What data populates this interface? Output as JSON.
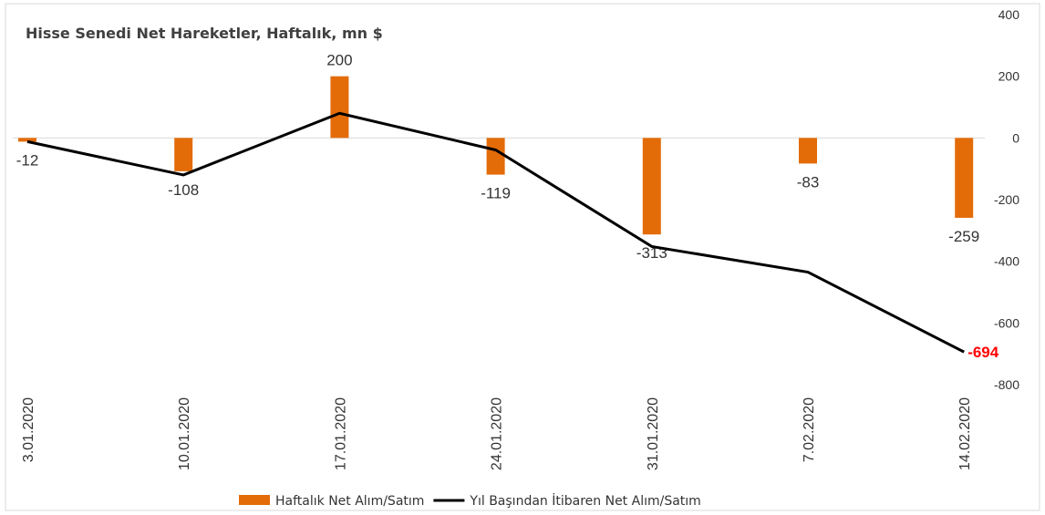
{
  "chart_data": {
    "type": "bar_line",
    "title": "Hisse Senedi Net Hareketler, Haftalık, mn $",
    "categories": [
      "3.01.2020",
      "10.01.2020",
      "17.01.2020",
      "24.01.2020",
      "31.01.2020",
      "7.02.2020",
      "14.02.2020"
    ],
    "series": [
      {
        "name": "Haftalık Net Alım/Satım",
        "type": "bar",
        "color": "#e36c09",
        "values": [
          -12,
          -108,
          200,
          -119,
          -313,
          -83,
          -259
        ],
        "data_labels": "all"
      },
      {
        "name": "Yıl Başından İtibaren Net Alım/Satım",
        "type": "line",
        "color": "#000000",
        "values": [
          -12,
          -120,
          80,
          -39,
          -352,
          -435,
          -694
        ],
        "data_labels": "last",
        "label_color": "#ff0000"
      }
    ],
    "ylim": [
      -800,
      400
    ],
    "yticks": [
      -800,
      -600,
      -400,
      -200,
      0,
      200,
      400
    ],
    "grid": false,
    "legend": "bottom"
  }
}
